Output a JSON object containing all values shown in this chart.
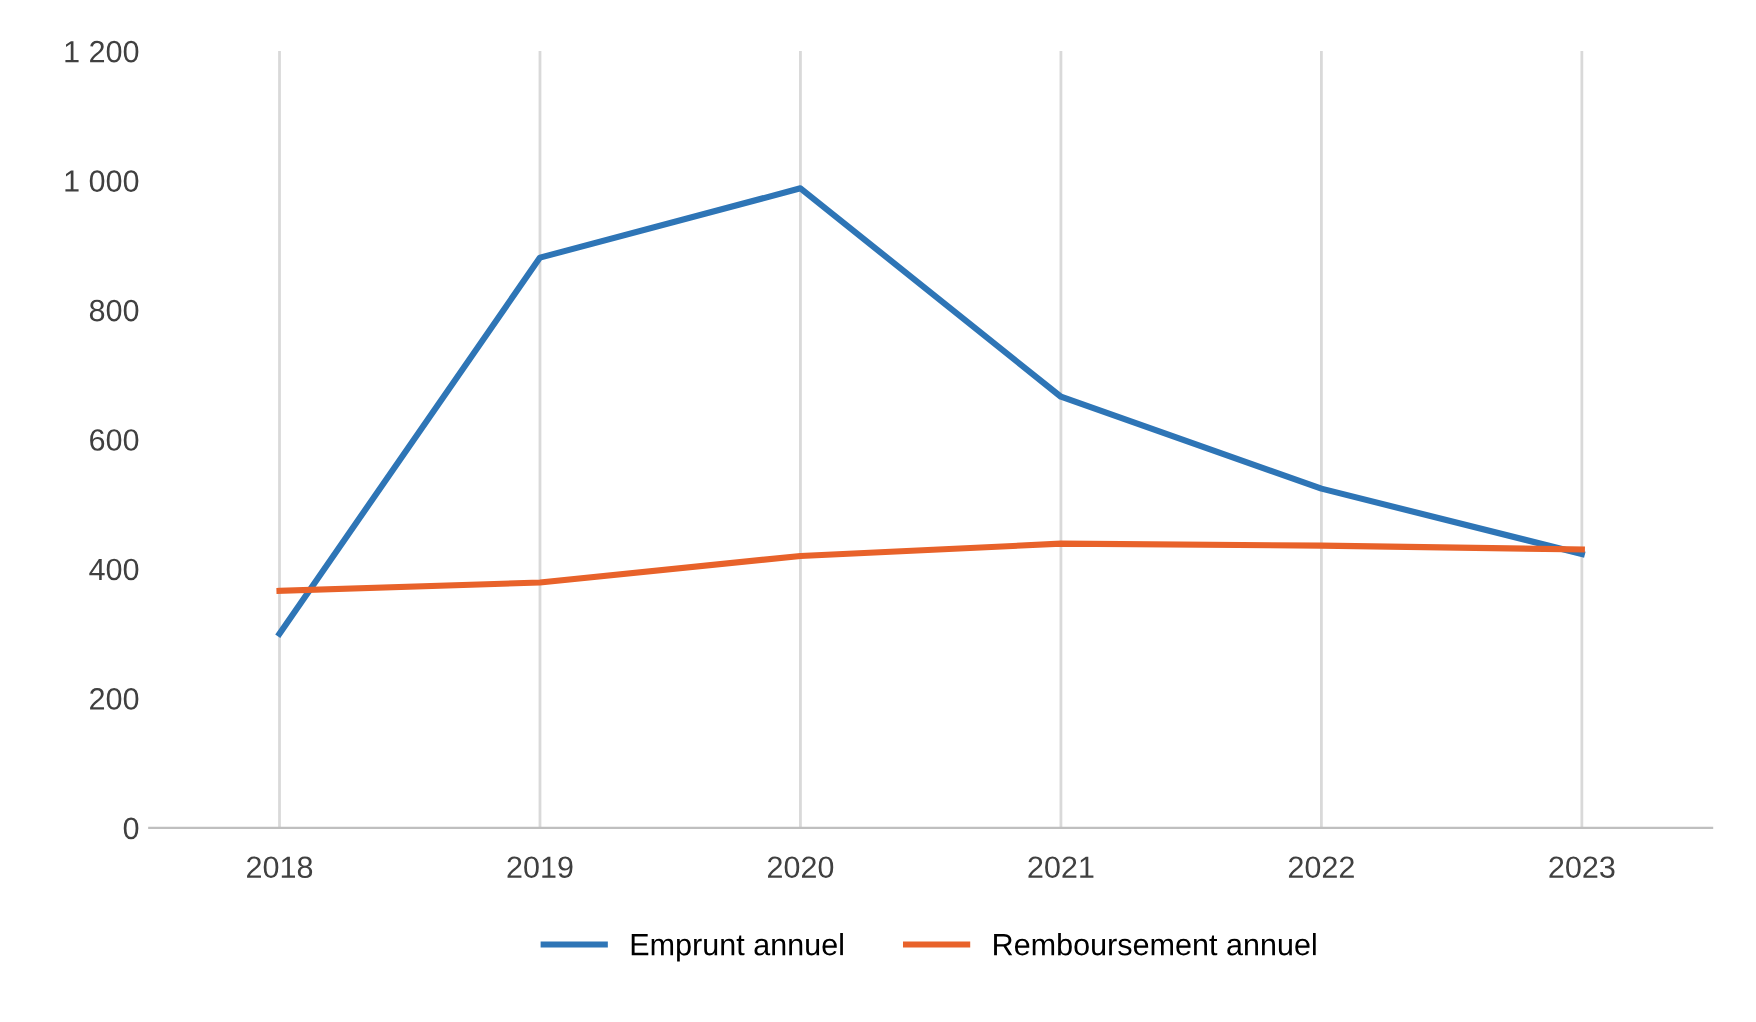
{
  "chart_data": {
    "type": "line",
    "categories": [
      "2018",
      "2019",
      "2020",
      "2021",
      "2022",
      "2023"
    ],
    "series": [
      {
        "name": "Emprunt annuel",
        "color": "#2e75b6",
        "values": [
          300,
          881,
          988,
          666,
          524,
          423
        ]
      },
      {
        "name": "Remboursement annuel",
        "color": "#e8622a",
        "values": [
          366,
          379,
          420,
          439,
          436,
          430
        ]
      }
    ],
    "ylim": [
      0,
      1200
    ],
    "yticks": [
      0,
      200,
      400,
      600,
      800,
      {
        "value": 1000,
        "label": "1 000"
      },
      {
        "value": 1200,
        "label": "1 200"
      }
    ],
    "grid": "x",
    "legend": "bottom",
    "marker": "none",
    "line_style": "solid"
  }
}
